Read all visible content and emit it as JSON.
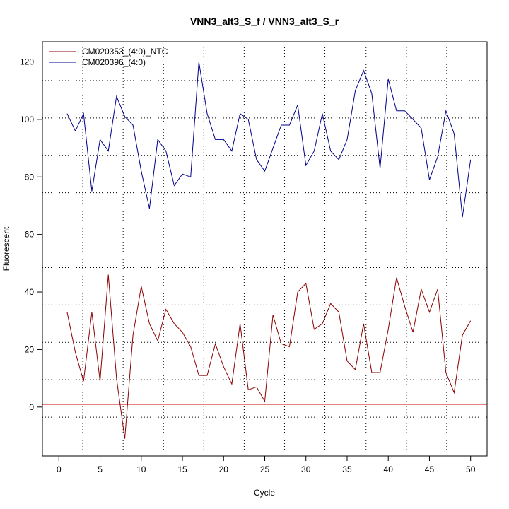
{
  "chart_data": {
    "type": "line",
    "title": "VNN3_alt3_S_f / VNN3_alt3_S_r",
    "xlabel": "Cycle",
    "ylabel": "Fluorescent",
    "xlim": [
      -2,
      52
    ],
    "ylim": [
      -17,
      127
    ],
    "x_ticks": [
      0,
      5,
      10,
      15,
      20,
      25,
      30,
      35,
      40,
      45,
      50
    ],
    "y_ticks": [
      0,
      20,
      40,
      60,
      80,
      100,
      120
    ],
    "grid_v": [
      2.9,
      7.8,
      12.7,
      17.6,
      22.5,
      27.4,
      32.3,
      37.3,
      42.2,
      47.1
    ],
    "grid_h": [
      -3.5,
      9.5,
      22.5,
      35.5,
      48.5,
      61.5,
      74.5,
      87.5,
      100.5,
      113.5
    ],
    "threshold": 1,
    "threshold_color": "#cc0000",
    "legend_position": "top-left",
    "series": [
      {
        "name": "CM020353_(4:0)_NTC",
        "color": "#8b0000",
        "x": [
          1,
          2,
          3,
          4,
          5,
          6,
          7,
          8,
          9,
          10,
          11,
          12,
          13,
          14,
          15,
          16,
          17,
          18,
          19,
          20,
          21,
          22,
          23,
          24,
          25,
          26,
          27,
          28,
          29,
          30,
          31,
          32,
          33,
          34,
          35,
          36,
          37,
          38,
          39,
          40,
          41,
          42,
          43,
          44,
          45,
          46,
          47,
          48,
          49,
          50
        ],
        "values": [
          33,
          19,
          9,
          33,
          9,
          46,
          10,
          -11,
          25,
          42,
          29,
          23,
          34,
          29,
          26,
          21,
          11,
          11,
          22,
          14,
          8,
          29,
          6,
          7,
          2,
          32,
          22,
          21,
          40,
          43,
          27,
          29,
          36,
          33,
          16,
          13,
          29,
          12,
          12,
          27,
          45,
          35,
          26,
          41,
          33,
          41,
          12,
          5,
          25,
          30
        ]
      },
      {
        "name": "CM020396_(4:0)",
        "color": "#00008b",
        "x": [
          1,
          2,
          3,
          4,
          5,
          6,
          7,
          8,
          9,
          10,
          11,
          12,
          13,
          14,
          15,
          16,
          17,
          18,
          19,
          20,
          21,
          22,
          23,
          24,
          25,
          26,
          27,
          28,
          29,
          30,
          31,
          32,
          33,
          34,
          35,
          36,
          37,
          38,
          39,
          40,
          41,
          42,
          43,
          44,
          45,
          46,
          47,
          48,
          49,
          50
        ],
        "values": [
          102,
          96,
          102,
          75,
          93,
          89,
          108,
          101,
          98,
          82,
          69,
          93,
          89,
          77,
          81,
          80,
          120,
          102,
          93,
          93,
          89,
          102,
          100,
          86,
          82,
          90,
          98,
          98,
          105,
          84,
          89,
          102,
          89,
          86,
          93,
          110,
          117,
          109,
          83,
          114,
          103,
          103,
          100,
          97,
          79,
          87,
          103,
          95,
          66,
          86
        ]
      }
    ]
  }
}
